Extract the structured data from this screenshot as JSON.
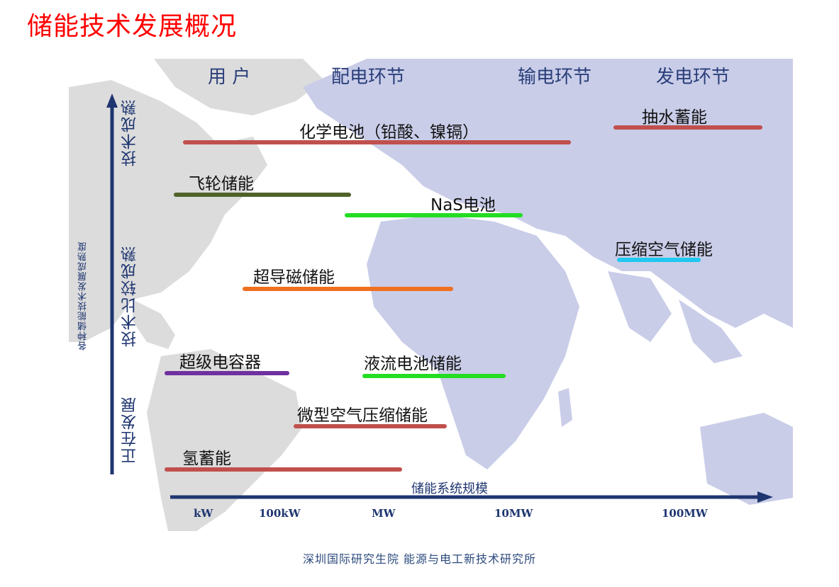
{
  "page_title": "储能技术发展概况",
  "stages": [
    "用 户",
    "配电环节",
    "输电环节",
    "发电环节"
  ],
  "y_axis": {
    "title": "各种储能技术发展成熟度",
    "maturity_levels": [
      "技术成熟",
      "技术比较成熟",
      "正在发展"
    ]
  },
  "x_axis": {
    "title": "储能系统规模",
    "ticks": [
      "kW",
      "100kW",
      "MW",
      "10MW",
      "100MW"
    ]
  },
  "technologies": [
    {
      "name": "化学电池（铅酸、镍镉）",
      "color": "#c0504d"
    },
    {
      "name": "抽水蓄能",
      "color": "#c0504d"
    },
    {
      "name": "飞轮储能",
      "color": "#4f6228"
    },
    {
      "name": "NaS电池",
      "color": "#22dd22"
    },
    {
      "name": "压缩空气储能",
      "color": "#1ec8f0"
    },
    {
      "name": "超导磁储能",
      "color": "#f07020"
    },
    {
      "name": "超级电容器",
      "color": "#7030a0"
    },
    {
      "name": "液流电池储能",
      "color": "#22dd22"
    },
    {
      "name": "微型空气压缩储能",
      "color": "#c0504d"
    },
    {
      "name": "氢蓄能",
      "color": "#c0504d"
    }
  ],
  "footer": "深圳国际研究生院 能源与电工新技术研究所"
}
